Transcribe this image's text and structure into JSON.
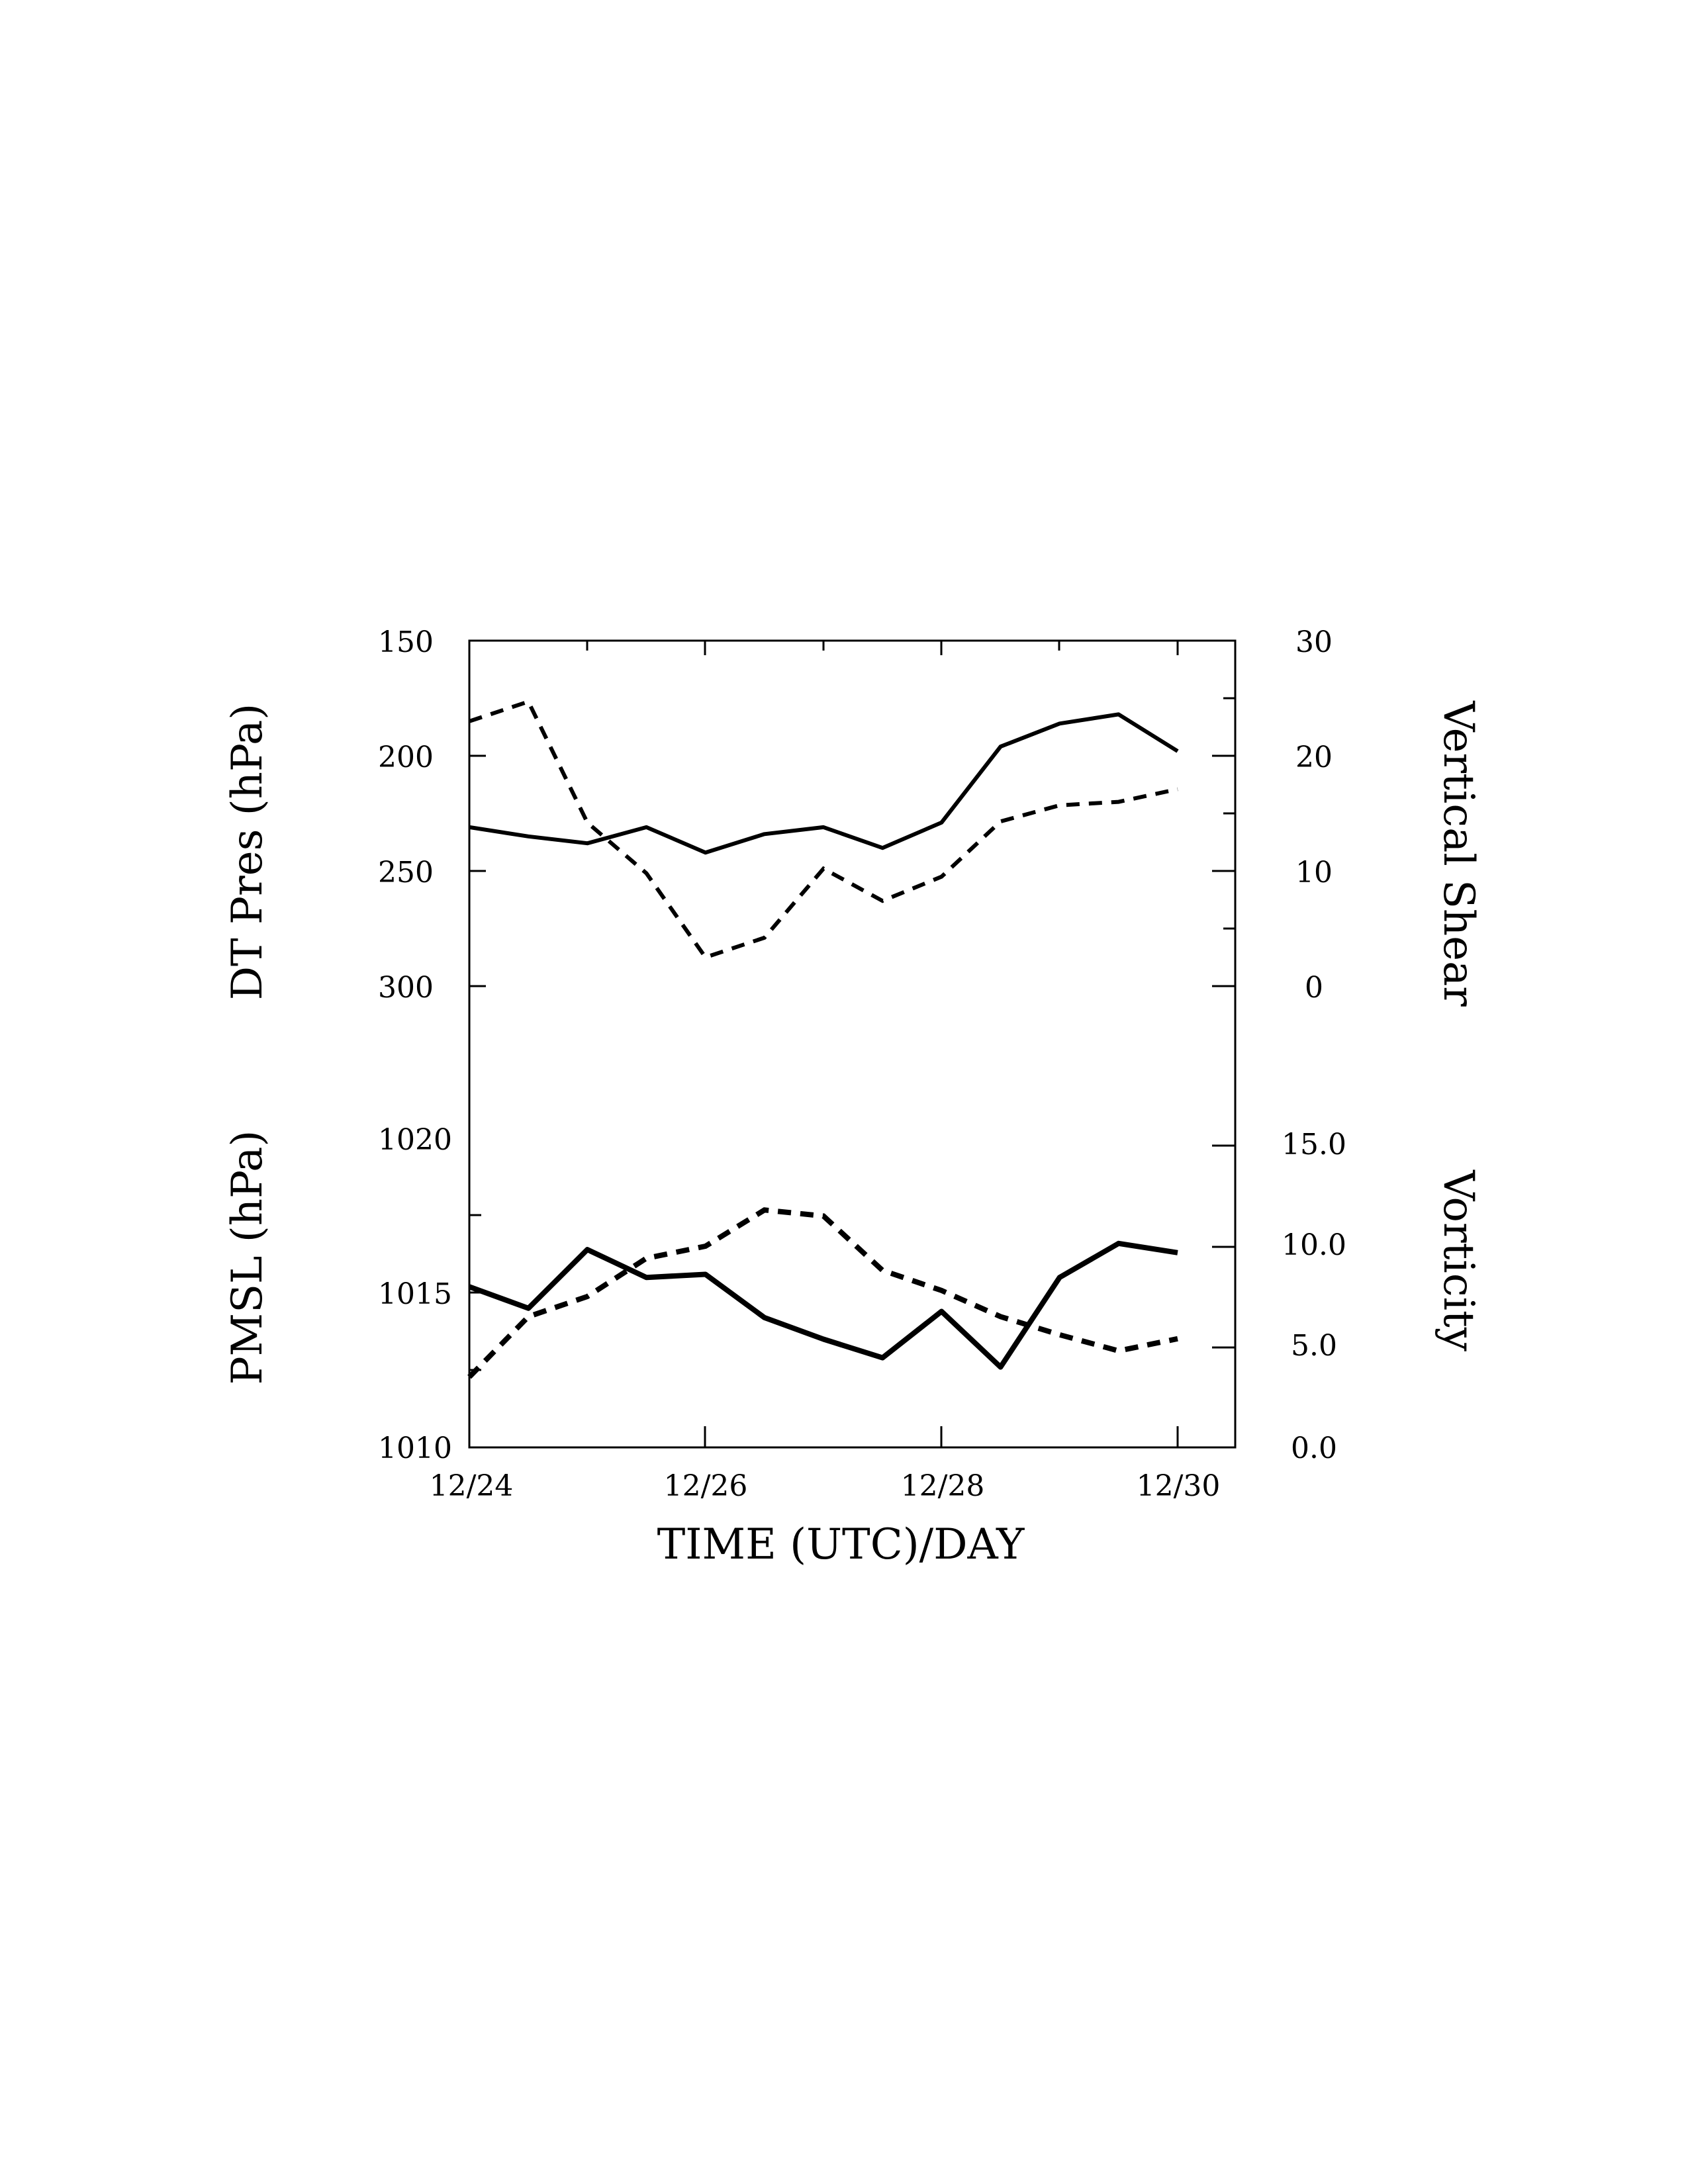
{
  "chart_data": [
    {
      "type": "line",
      "panel": "upper",
      "xlabel": "TIME (UTC)/DAY",
      "x": [
        "12/24 00",
        "12/24 12",
        "12/25 00",
        "12/25 12",
        "12/26 00",
        "12/26 12",
        "12/27 00",
        "12/27 12",
        "12/28 00",
        "12/28 12",
        "12/29 00",
        "12/29 12",
        "12/30 00"
      ],
      "x_ticks": [
        "12/24",
        "12/26",
        "12/28",
        "12/30"
      ],
      "left_axis": {
        "label": "DT Pres (hPa)",
        "ticks": [
          "150",
          "200",
          "250",
          "300"
        ],
        "range": [
          150,
          300
        ],
        "inverted": true
      },
      "right_axis": {
        "label": "Vertical Shear",
        "ticks": [
          "30",
          "20",
          "10",
          "0"
        ],
        "range": [
          0,
          30
        ]
      },
      "series": [
        {
          "axis": "left",
          "style": "solid",
          "values": [
            231,
            235,
            238,
            231,
            242,
            234,
            231,
            240,
            229,
            196,
            186,
            182,
            198
          ]
        },
        {
          "axis": "right",
          "style": "dashed",
          "values": [
            23.0,
            24.7,
            14.2,
            9.8,
            2.5,
            4.2,
            10.2,
            7.4,
            9.5,
            14.3,
            15.7,
            16.0,
            17.1
          ]
        }
      ]
    },
    {
      "type": "line",
      "panel": "lower",
      "xlabel": "TIME (UTC)/DAY",
      "x": [
        "12/24 00",
        "12/24 12",
        "12/25 00",
        "12/25 12",
        "12/26 00",
        "12/26 12",
        "12/27 00",
        "12/27 12",
        "12/28 00",
        "12/28 12",
        "12/29 00",
        "12/29 12",
        "12/30 00"
      ],
      "x_ticks": [
        "12/24",
        "12/26",
        "12/28",
        "12/30"
      ],
      "left_axis": {
        "label": "PMSL (hPa)",
        "ticks": [
          "1020",
          "1015",
          "1010"
        ],
        "range": [
          1010,
          1020
        ]
      },
      "right_axis": {
        "label": "Vorticity",
        "ticks": [
          "15.0",
          "10.0",
          "5.0",
          "0.0"
        ],
        "range": [
          0,
          15
        ]
      },
      "series": [
        {
          "axis": "left",
          "style": "solid",
          "values": [
            1015.2,
            1014.5,
            1016.4,
            1015.5,
            1015.6,
            1014.2,
            1013.5,
            1012.9,
            1014.4,
            1012.6,
            1015.5,
            1016.6,
            1016.3
          ]
        },
        {
          "axis": "right",
          "style": "dashed",
          "values": [
            3.5,
            6.5,
            7.5,
            9.4,
            10.0,
            11.8,
            11.5,
            8.8,
            7.8,
            6.5,
            5.6,
            4.8,
            5.4
          ]
        }
      ]
    }
  ]
}
